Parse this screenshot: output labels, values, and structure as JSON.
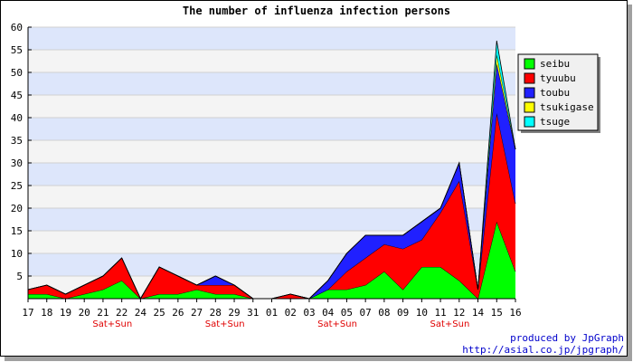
{
  "chart_data": {
    "type": "area",
    "stacked": true,
    "title": "The number of influenza infection persons",
    "xlabel": "",
    "ylabel": "",
    "categories": [
      "17",
      "18",
      "19",
      "20",
      "21",
      "22",
      "24",
      "25",
      "26",
      "27",
      "28",
      "29",
      "31",
      "01",
      "02",
      "03",
      "04",
      "05",
      "07",
      "08",
      "09",
      "10",
      "11",
      "12",
      "14",
      "15",
      "16"
    ],
    "ylim": [
      0,
      60
    ],
    "yticks": [
      5,
      10,
      15,
      20,
      25,
      30,
      35,
      40,
      45,
      50,
      55,
      60
    ],
    "weekend_markers": [
      {
        "between": [
          "21",
          "22"
        ],
        "label": "Sat+Sun"
      },
      {
        "between": [
          "28",
          "29"
        ],
        "label": "Sat+Sun"
      },
      {
        "between": [
          "04",
          "05"
        ],
        "label": "Sat+Sun"
      },
      {
        "between": [
          "11",
          "12"
        ],
        "label": "Sat+Sun"
      }
    ],
    "series": [
      {
        "name": "seibu",
        "color": "#00ff00",
        "values": [
          1,
          1,
          0,
          1,
          2,
          4,
          0,
          1,
          1,
          2,
          1,
          1,
          0,
          0,
          0,
          0,
          2,
          2,
          3,
          6,
          2,
          7,
          7,
          4,
          0,
          17,
          6
        ]
      },
      {
        "name": "tyuubu",
        "color": "#ff0000",
        "values": [
          1,
          2,
          1,
          2,
          3,
          5,
          0,
          6,
          4,
          1,
          2,
          2,
          0,
          0,
          1,
          0,
          0,
          4,
          6,
          6,
          9,
          6,
          12,
          22,
          2,
          24,
          15
        ]
      },
      {
        "name": "toubu",
        "color": "#2020ff",
        "values": [
          0,
          0,
          0,
          0,
          0,
          0,
          0,
          0,
          0,
          0,
          2,
          0,
          0,
          0,
          0,
          0,
          2,
          4,
          5,
          2,
          3,
          4,
          1,
          4,
          0,
          11,
          12
        ]
      },
      {
        "name": "tsukigase",
        "color": "#ffff00",
        "values": [
          0,
          0,
          0,
          0,
          0,
          0,
          0,
          0,
          0,
          0,
          0,
          0,
          0,
          0,
          0,
          0,
          0,
          0,
          0,
          0,
          0,
          0,
          0,
          0,
          0,
          2,
          0
        ]
      },
      {
        "name": "tsuge",
        "color": "#00ffff",
        "values": [
          0,
          0,
          0,
          0,
          0,
          0,
          0,
          0,
          0,
          0,
          0,
          0,
          0,
          0,
          0,
          0,
          0,
          0,
          0,
          0,
          0,
          0,
          0,
          0,
          0,
          3,
          0
        ]
      }
    ],
    "grid": true,
    "legend_position": "right"
  },
  "credits": {
    "line1": "produced by JpGraph",
    "line2": "http://asial.co.jp/jpgraph/"
  }
}
